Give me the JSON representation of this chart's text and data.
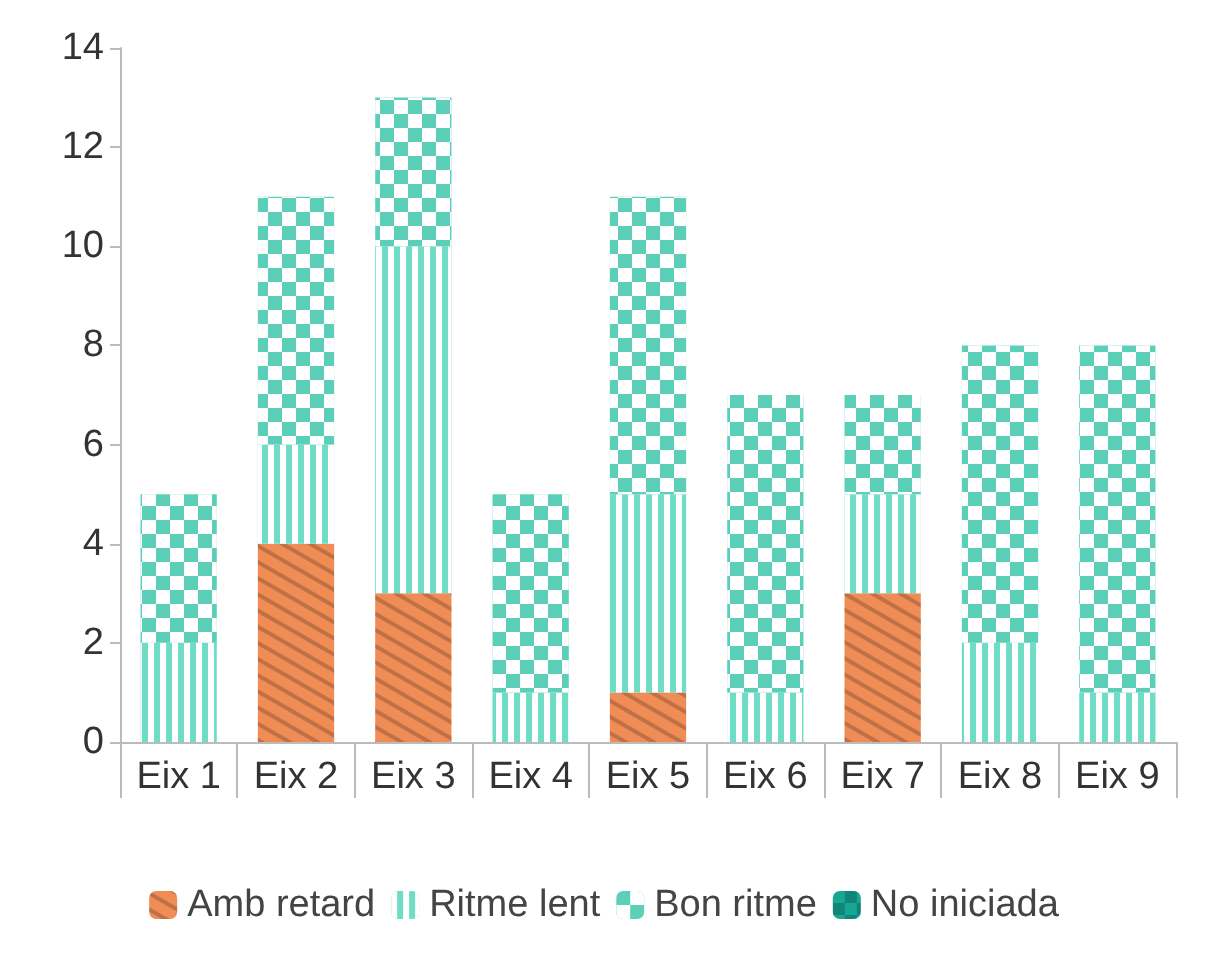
{
  "chart_data": {
    "type": "bar",
    "stacked": true,
    "categories": [
      "Eix 1",
      "Eix 2",
      "Eix 3",
      "Eix 4",
      "Eix 5",
      "Eix 6",
      "Eix 7",
      "Eix 8",
      "Eix 9"
    ],
    "series": [
      {
        "name": "Amb retard",
        "color": "#f08c56",
        "values": [
          0,
          4,
          3,
          0,
          1,
          0,
          3,
          0,
          0
        ]
      },
      {
        "name": "Ritme lent",
        "color": "#6fdcc6",
        "values": [
          2,
          2,
          7,
          1,
          4,
          1,
          2,
          2,
          1
        ]
      },
      {
        "name": "Bon ritme",
        "color": "#5ccfb8",
        "values": [
          3,
          5,
          3,
          4,
          6,
          6,
          2,
          6,
          7
        ]
      },
      {
        "name": "No iniciada",
        "color": "#17a596",
        "values": [
          0,
          0,
          0,
          0,
          0,
          0,
          0,
          0,
          0
        ]
      }
    ],
    "ylim": [
      0,
      14
    ],
    "yticks": [
      0,
      2,
      4,
      6,
      8,
      10,
      12,
      14
    ],
    "grid": false,
    "legend": "bottom"
  }
}
